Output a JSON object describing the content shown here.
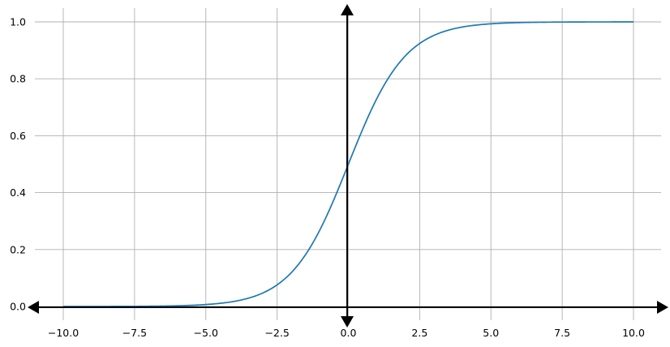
{
  "chart_data": {
    "type": "line",
    "title": "",
    "xlabel": "",
    "ylabel": "",
    "xlim": [
      -11,
      11
    ],
    "ylim": [
      -0.05,
      1.05
    ],
    "grid": true,
    "x_ticks": [
      -10,
      -7.5,
      -5,
      -2.5,
      0,
      2.5,
      5,
      7.5,
      10
    ],
    "x_tick_labels": [
      "−10.0",
      "−7.5",
      "−5.0",
      "−2.5",
      "0.0",
      "2.5",
      "5.0",
      "7.5",
      "10.0"
    ],
    "y_ticks": [
      0,
      0.2,
      0.4,
      0.6,
      0.8,
      1.0
    ],
    "y_tick_labels": [
      "0.0",
      "0.2",
      "0.4",
      "0.6",
      "0.8",
      "1.0"
    ],
    "series": [
      {
        "function": "sigmoid",
        "x_range": [
          -10,
          10
        ],
        "x": [
          -10,
          -7.5,
          -5,
          -4,
          -3,
          -2.5,
          -2,
          -1.5,
          -1,
          -0.5,
          0,
          0.5,
          1,
          1.5,
          2,
          2.5,
          3,
          4,
          5,
          7.5,
          10
        ],
        "y": [
          4.54e-05,
          0.000553,
          0.00669,
          0.018,
          0.0474,
          0.0759,
          0.1192,
          0.1824,
          0.2689,
          0.3775,
          0.5,
          0.6225,
          0.7311,
          0.8176,
          0.8808,
          0.9241,
          0.9526,
          0.982,
          0.9933,
          0.9994,
          0.99995
        ],
        "color": "#1f77b4"
      }
    ],
    "axis_arrows": {
      "color": "#000000",
      "style": "arrowheads at both ends of x=0 and y=0 lines"
    }
  }
}
